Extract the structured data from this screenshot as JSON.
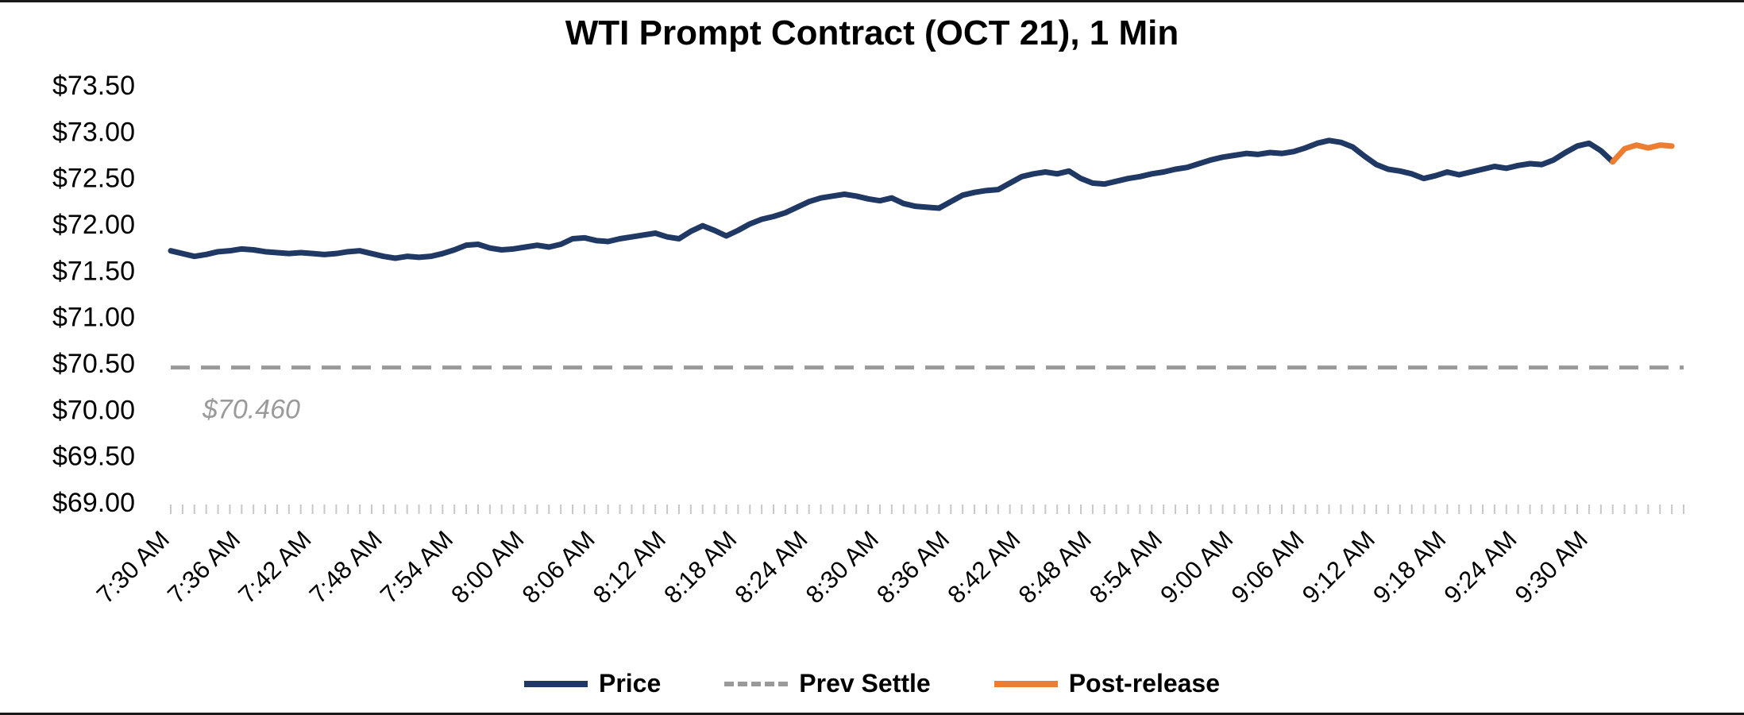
{
  "chart_data": {
    "type": "line",
    "title": "WTI Prompt Contract (OCT 21), 1 Min",
    "ylabel": "",
    "xlabel": "",
    "ylim": [
      69.0,
      73.5
    ],
    "y_tick_step": 0.5,
    "y_tick_labels": [
      "$69.00",
      "$69.50",
      "$70.00",
      "$70.50",
      "$71.00",
      "$71.50",
      "$72.00",
      "$72.50",
      "$73.00",
      "$73.50"
    ],
    "x_start_time": "7:30 AM",
    "x_tick_interval_min": 6,
    "x_domain_minutes": [
      0,
      128
    ],
    "x_tick_labels": [
      "7:30 AM",
      "7:36 AM",
      "7:42 AM",
      "7:48 AM",
      "7:54 AM",
      "8:00 AM",
      "8:06 AM",
      "8:12 AM",
      "8:18 AM",
      "8:24 AM",
      "8:30 AM",
      "8:36 AM",
      "8:42 AM",
      "8:48 AM",
      "8:54 AM",
      "9:00 AM",
      "9:06 AM",
      "9:12 AM",
      "9:18 AM",
      "9:24 AM",
      "9:30 AM"
    ],
    "grid": false,
    "legend_position": "bottom-center",
    "prev_settle": {
      "value": 70.46,
      "label": "$70.460",
      "color": "#9a9a9a"
    },
    "series": [
      {
        "name": "Price",
        "color": "#1F3864",
        "style": "solid",
        "start_min": 0,
        "step_min": 1,
        "values": [
          71.72,
          71.69,
          71.66,
          71.68,
          71.71,
          71.72,
          71.74,
          71.73,
          71.71,
          71.7,
          71.69,
          71.7,
          71.69,
          71.68,
          71.69,
          71.71,
          71.72,
          71.69,
          71.66,
          71.64,
          71.66,
          71.65,
          71.66,
          71.69,
          71.73,
          71.78,
          71.79,
          71.75,
          71.73,
          71.74,
          71.76,
          71.78,
          71.76,
          71.79,
          71.85,
          71.86,
          71.83,
          71.82,
          71.85,
          71.87,
          71.89,
          71.91,
          71.87,
          71.85,
          71.93,
          71.99,
          71.94,
          71.88,
          71.94,
          72.01,
          72.06,
          72.09,
          72.13,
          72.19,
          72.25,
          72.29,
          72.31,
          72.33,
          72.31,
          72.28,
          72.26,
          72.29,
          72.23,
          72.2,
          72.19,
          72.18,
          72.25,
          72.32,
          72.35,
          72.37,
          72.38,
          72.45,
          72.52,
          72.55,
          72.57,
          72.55,
          72.58,
          72.5,
          72.45,
          72.44,
          72.47,
          72.5,
          72.52,
          72.55,
          72.57,
          72.6,
          72.62,
          72.66,
          72.7,
          72.73,
          72.75,
          72.77,
          72.76,
          72.78,
          72.77,
          72.79,
          72.83,
          72.88,
          72.91,
          72.89,
          72.84,
          72.74,
          72.65,
          72.6,
          72.58,
          72.55,
          72.5,
          72.53,
          72.57,
          72.54,
          72.57,
          72.6,
          72.63,
          72.61,
          72.64,
          72.66,
          72.65,
          72.7,
          72.78,
          72.85,
          72.88,
          72.8,
          72.68
        ]
      },
      {
        "name": "Post-release",
        "color": "#ED7D31",
        "style": "solid",
        "start_min": 122,
        "step_min": 1,
        "values": [
          72.68,
          72.82,
          72.86,
          72.83,
          72.86,
          72.85
        ]
      }
    ],
    "legend": [
      {
        "label": "Price",
        "color": "#1F3864",
        "style": "solid"
      },
      {
        "label": "Prev Settle",
        "color": "#9a9a9a",
        "style": "dashed"
      },
      {
        "label": "Post-release",
        "color": "#ED7D31",
        "style": "solid"
      }
    ]
  }
}
